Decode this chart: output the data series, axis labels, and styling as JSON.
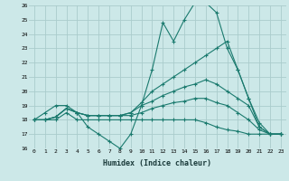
{
  "xlabel": "Humidex (Indice chaleur)",
  "bg_color": "#cce8e8",
  "grid_color": "#aacccc",
  "line_color": "#1a7a6e",
  "xlim": [
    -0.5,
    23.5
  ],
  "ylim": [
    16,
    26
  ],
  "xticks": [
    0,
    1,
    2,
    3,
    4,
    5,
    6,
    7,
    8,
    9,
    10,
    11,
    12,
    13,
    14,
    15,
    16,
    17,
    18,
    19,
    20,
    21,
    22,
    23
  ],
  "yticks": [
    16,
    17,
    18,
    19,
    20,
    21,
    22,
    23,
    24,
    25,
    26
  ],
  "series": [
    [
      18.0,
      18.5,
      19.0,
      19.0,
      18.5,
      17.5,
      17.0,
      16.5,
      16.0,
      17.0,
      19.0,
      21.5,
      24.8,
      23.5,
      25.0,
      26.2,
      26.2,
      25.5,
      23.0,
      21.5,
      19.5,
      17.8,
      17.0,
      17.0
    ],
    [
      18.0,
      18.0,
      18.2,
      18.8,
      18.5,
      18.3,
      18.3,
      18.3,
      18.3,
      18.5,
      19.2,
      20.0,
      20.5,
      21.0,
      21.5,
      22.0,
      22.5,
      23.0,
      23.5,
      21.5,
      19.5,
      17.5,
      17.0,
      17.0
    ],
    [
      18.0,
      18.0,
      18.2,
      18.8,
      18.5,
      18.3,
      18.3,
      18.3,
      18.3,
      18.5,
      19.0,
      19.3,
      19.7,
      20.0,
      20.3,
      20.5,
      20.8,
      20.5,
      20.0,
      19.5,
      19.0,
      17.5,
      17.0,
      17.0
    ],
    [
      18.0,
      18.0,
      18.2,
      18.8,
      18.5,
      18.3,
      18.3,
      18.3,
      18.3,
      18.3,
      18.5,
      18.8,
      19.0,
      19.2,
      19.3,
      19.5,
      19.5,
      19.2,
      19.0,
      18.5,
      18.0,
      17.3,
      17.0,
      17.0
    ],
    [
      18.0,
      18.0,
      18.0,
      18.5,
      18.0,
      18.0,
      18.0,
      18.0,
      18.0,
      18.0,
      18.0,
      18.0,
      18.0,
      18.0,
      18.0,
      18.0,
      17.8,
      17.5,
      17.3,
      17.2,
      17.0,
      17.0,
      17.0,
      17.0
    ]
  ]
}
